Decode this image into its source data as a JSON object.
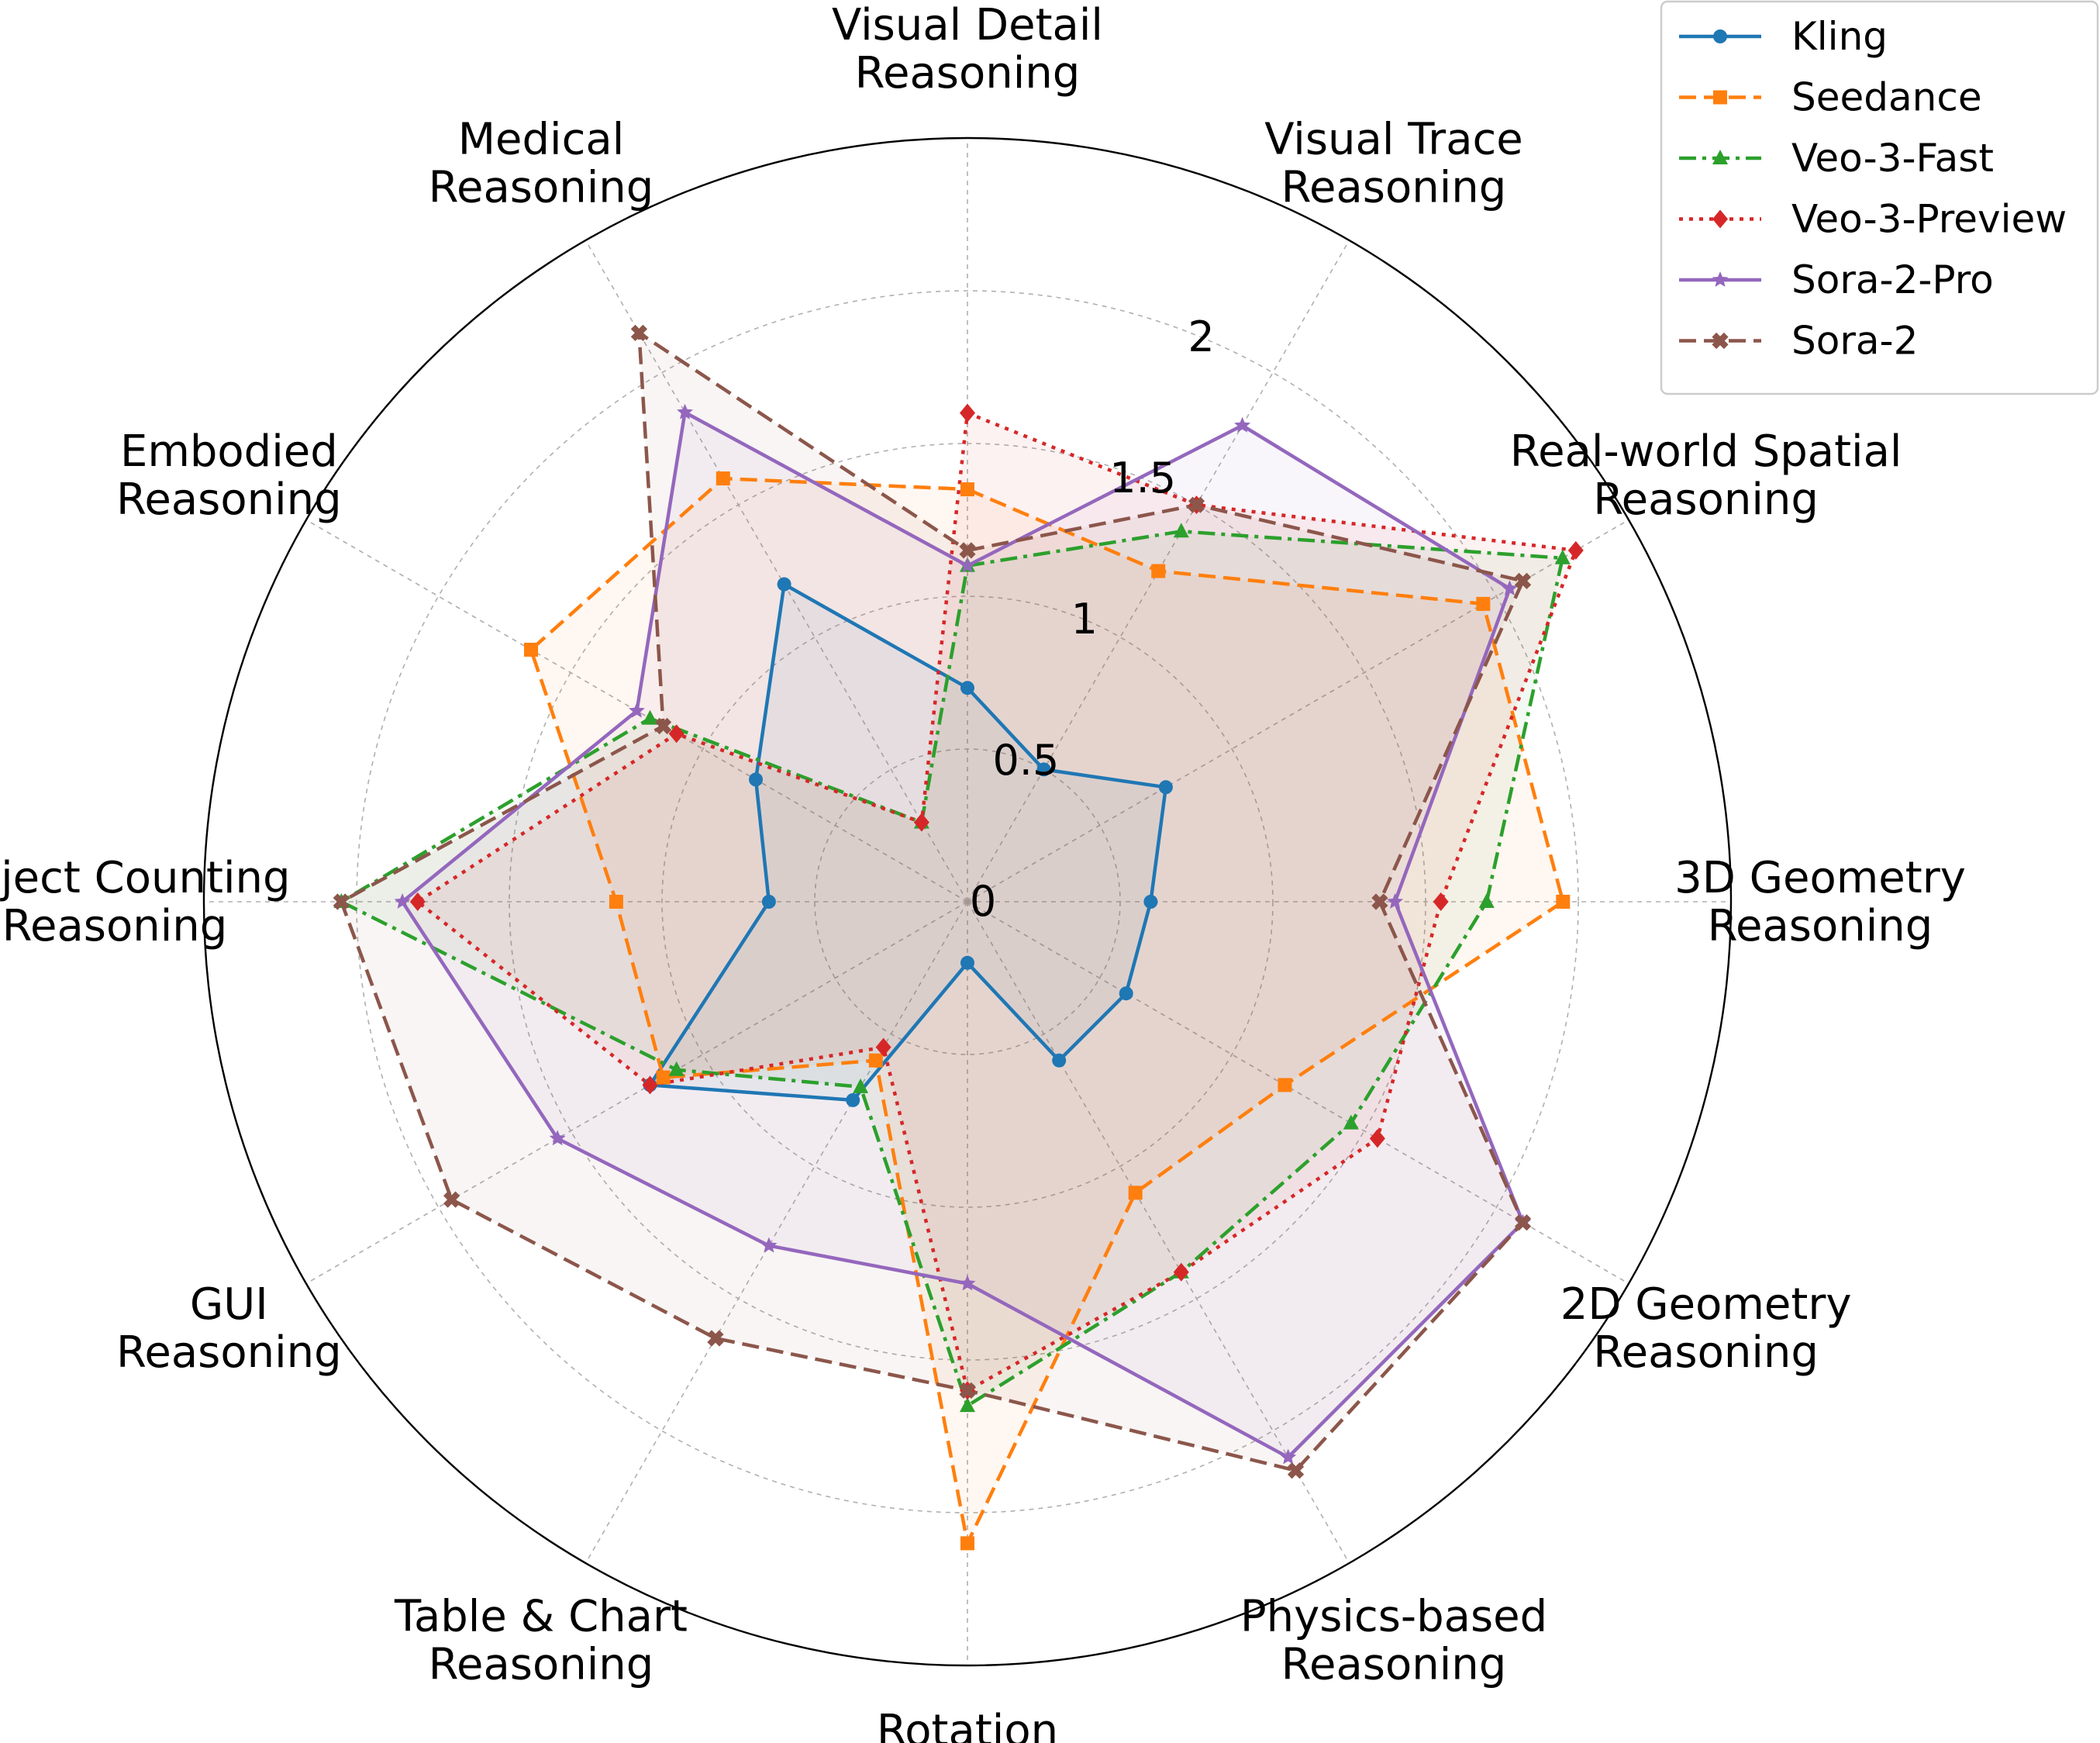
{
  "chart_data": {
    "type": "radar",
    "categories": [
      [
        "Visual Detail",
        "Reasoning"
      ],
      [
        "Visual Trace",
        "Reasoning"
      ],
      [
        "Real-world Spatial",
        "Reasoning"
      ],
      [
        "3D Geometry",
        "Reasoning"
      ],
      [
        "2D Geometry",
        "Reasoning"
      ],
      [
        "Physics-based",
        "Reasoning"
      ],
      [
        "Rotation",
        "Reasoning"
      ],
      [
        "Table & Chart",
        "Reasoning"
      ],
      [
        "GUI",
        "Reasoning"
      ],
      [
        "Object Counting",
        "Reasoning"
      ],
      [
        "Embodied",
        "Reasoning"
      ],
      [
        "Medical",
        "Reasoning"
      ]
    ],
    "r_ticks": [
      0,
      0.5,
      1,
      1.5,
      2
    ],
    "r_tick_labels": [
      "0",
      "0.5",
      "1",
      "1.5",
      "2"
    ],
    "rlim": [
      0,
      2.5
    ],
    "grid": true,
    "legend_position": "top-right",
    "series": [
      {
        "name": "Kling",
        "color": "#1f77b4",
        "marker": "circle",
        "linestyle": "solid",
        "values": [
          0.7,
          0.5,
          0.75,
          0.6,
          0.6,
          0.6,
          0.2,
          0.75,
          1.2,
          0.65,
          0.8,
          1.2
        ]
      },
      {
        "name": "Seedance",
        "color": "#ff7f0e",
        "marker": "square",
        "linestyle": "dashed",
        "values": [
          1.35,
          1.25,
          1.95,
          1.95,
          1.2,
          1.1,
          2.1,
          0.6,
          1.15,
          1.15,
          1.65,
          1.6
        ]
      },
      {
        "name": "Veo-3-Fast",
        "color": "#2ca02c",
        "marker": "triangle",
        "linestyle": "dashdot",
        "values": [
          1.1,
          1.4,
          2.25,
          1.7,
          1.45,
          1.4,
          1.65,
          0.7,
          1.1,
          2.05,
          1.2,
          0.3
        ]
      },
      {
        "name": "Veo-3-Preview",
        "color": "#d62728",
        "marker": "diamond",
        "linestyle": "dotted",
        "values": [
          1.6,
          1.5,
          2.3,
          1.55,
          1.55,
          1.4,
          1.6,
          0.55,
          1.2,
          1.8,
          1.1,
          0.3
        ]
      },
      {
        "name": "Sora-2-Pro",
        "color": "#9467bd",
        "marker": "star",
        "linestyle": "solid",
        "values": [
          1.1,
          1.8,
          2.05,
          1.4,
          2.1,
          2.1,
          1.25,
          1.3,
          1.55,
          1.85,
          1.25,
          1.85
        ]
      },
      {
        "name": "Sora-2",
        "color": "#8c564b",
        "marker": "plus",
        "linestyle": "dashed",
        "values": [
          1.15,
          1.5,
          2.1,
          1.35,
          2.1,
          2.15,
          1.6,
          1.65,
          1.95,
          2.05,
          1.15,
          2.15
        ]
      }
    ]
  }
}
